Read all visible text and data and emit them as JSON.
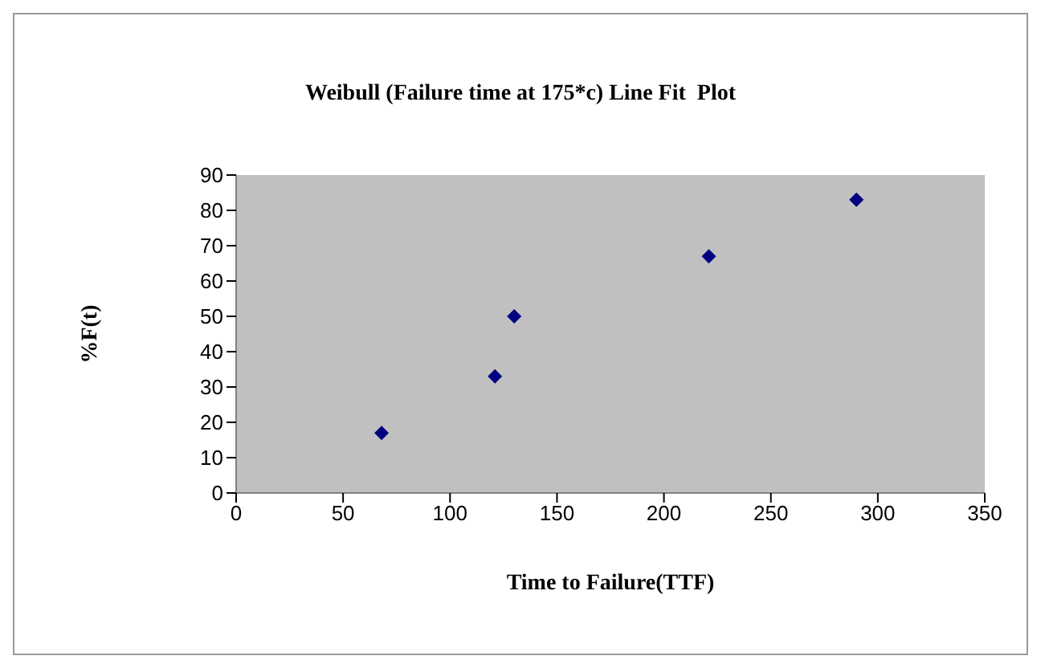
{
  "chart_data": {
    "type": "scatter",
    "title": "Weibull (Failure time at 175*c) Line Fit  Plot",
    "xlabel": "Time to Failure(TTF)",
    "ylabel": "%F(t)",
    "x": [
      68,
      121,
      130,
      221,
      290
    ],
    "series": [
      {
        "color": "#000080",
        "values": [
          17,
          33,
          50,
          67,
          83
        ]
      }
    ],
    "xlim": [
      0,
      350
    ],
    "xticks": [
      0,
      50,
      100,
      150,
      200,
      250,
      300,
      350
    ],
    "ylim": [
      0,
      90
    ],
    "yticks": [
      0,
      10,
      20,
      30,
      40,
      50,
      60,
      70,
      80,
      90
    ],
    "marker": "diamond",
    "legend": false
  }
}
